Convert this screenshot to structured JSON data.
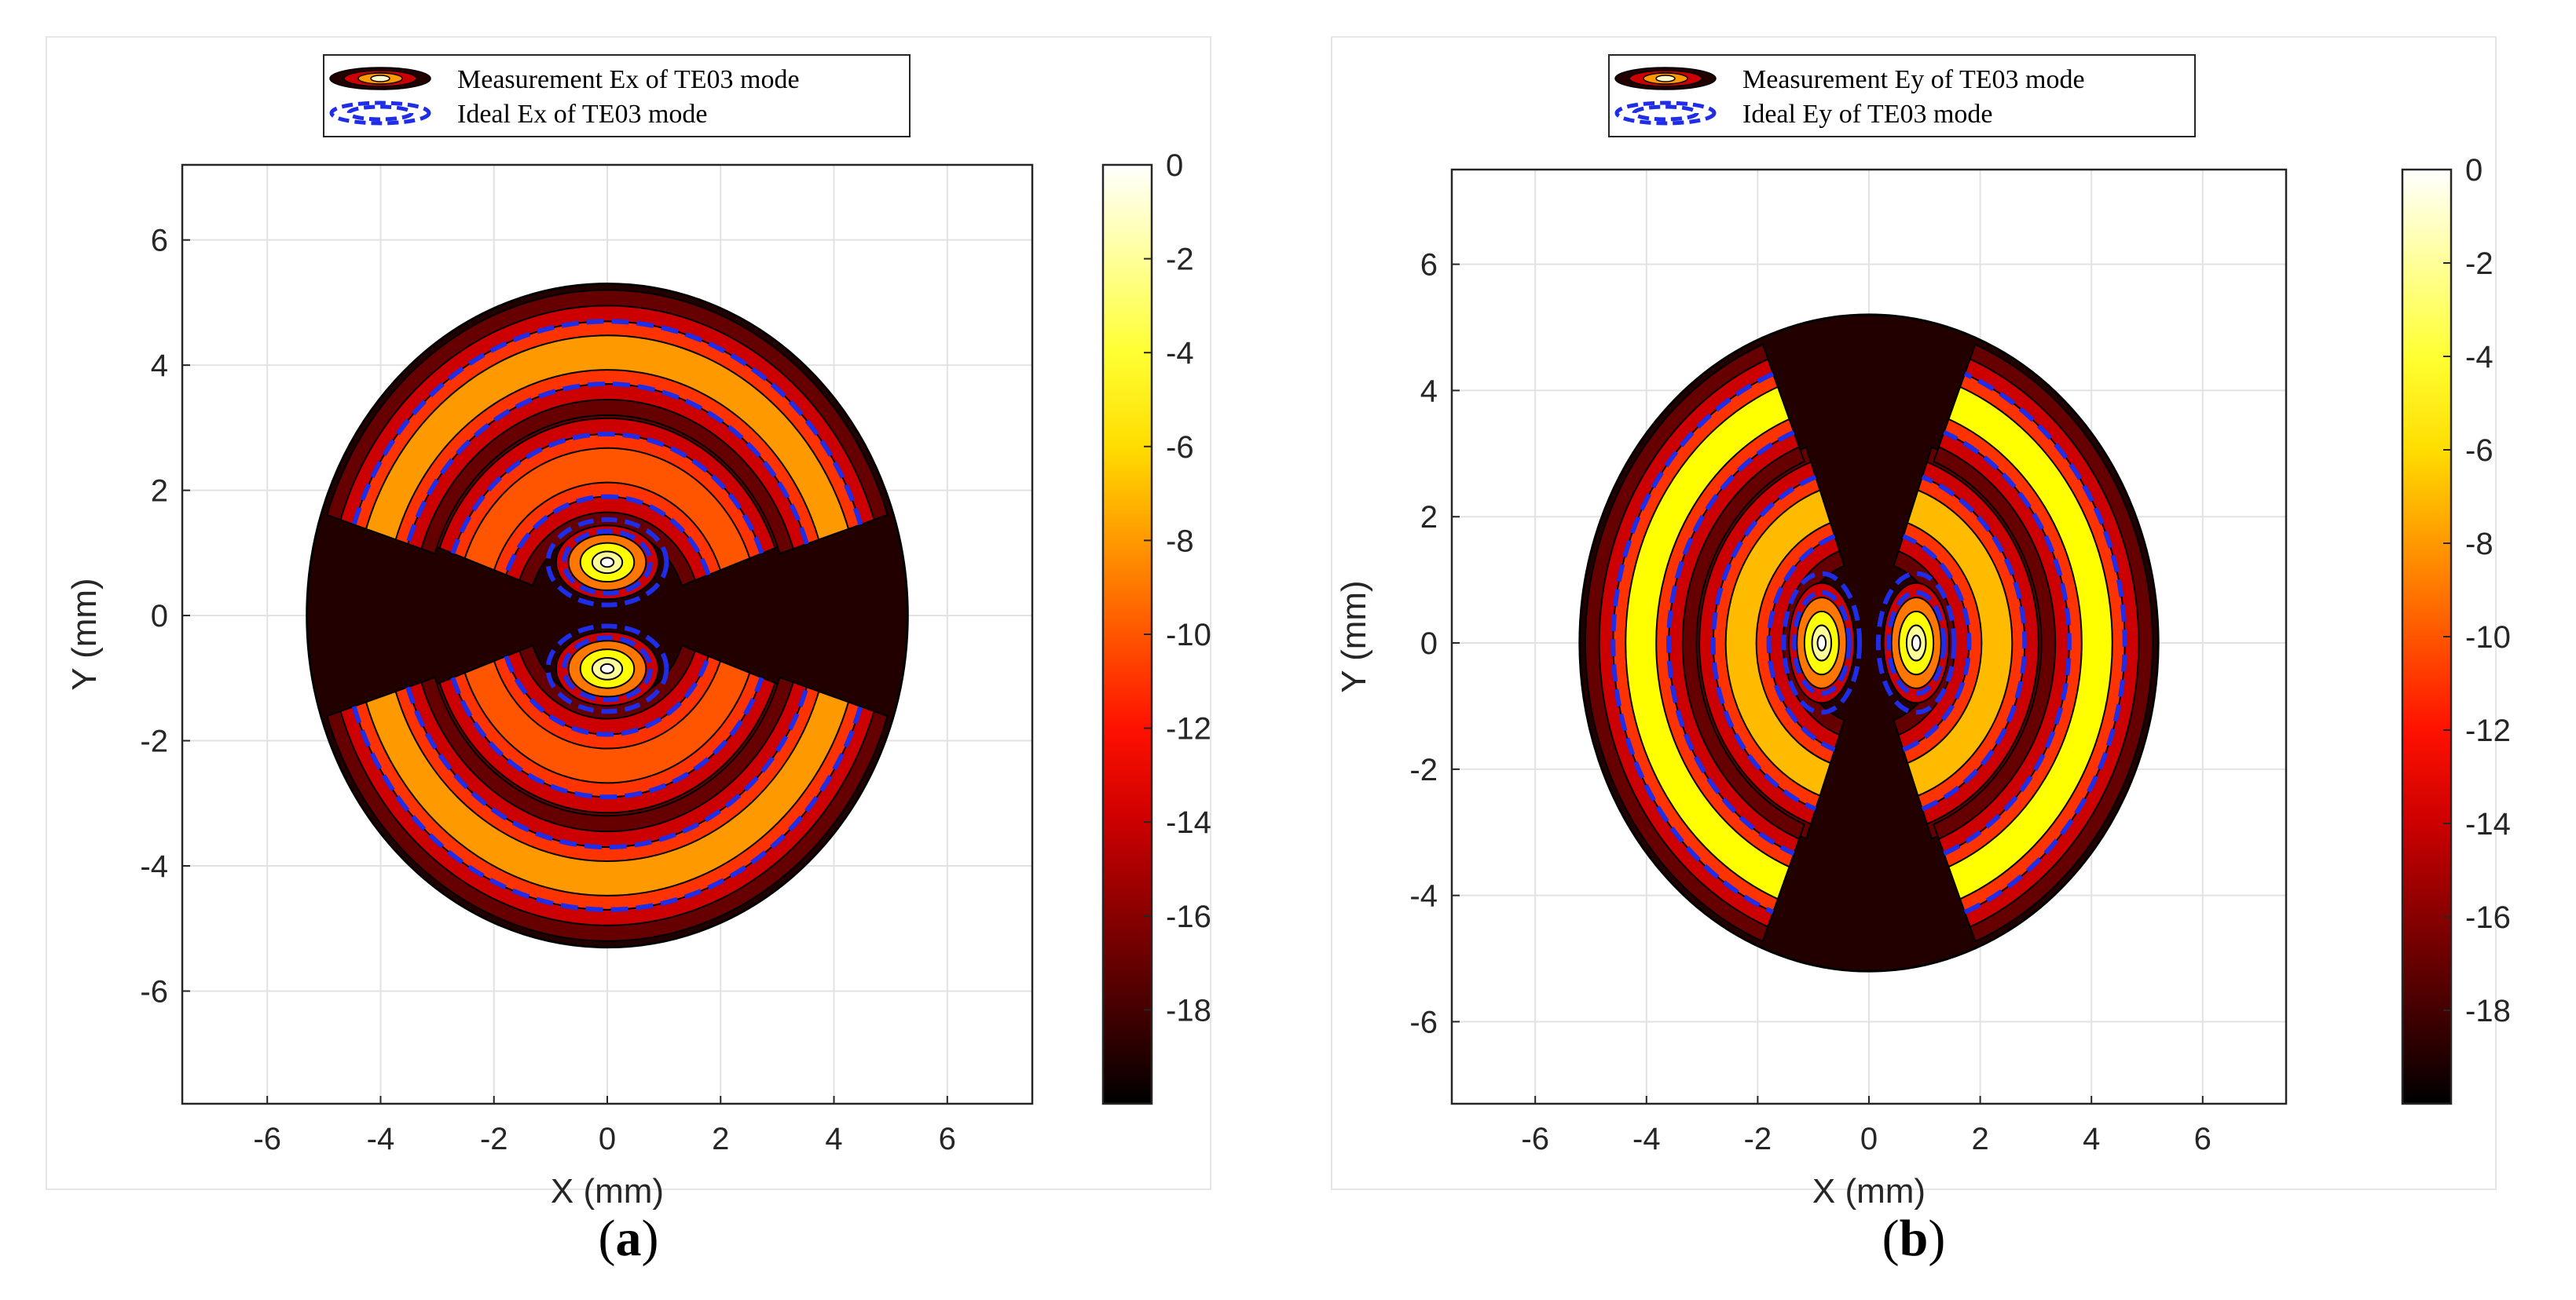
{
  "figure": {
    "captions": [
      {
        "open": "(",
        "letter": "a",
        "close": ")"
      },
      {
        "open": "(",
        "letter": "b",
        "close": ")"
      }
    ]
  },
  "chart_data": [
    {
      "type": "heatmap",
      "subtype": "contour map with overlaid dashed ideal contours",
      "xlabel": "X (mm)",
      "ylabel": "Y (mm)",
      "xlim": [
        -7.5,
        7.5
      ],
      "ylim": [
        -7.8,
        7.2
      ],
      "xticks": [
        -6,
        -4,
        -2,
        0,
        2,
        4,
        6
      ],
      "yticks": [
        -6,
        -4,
        -2,
        0,
        2,
        4,
        6
      ],
      "grid": true,
      "legend": {
        "placement": "top-center",
        "entries": [
          "Measurement Ex of  TE03 mode",
          "Ideal Ex of  TE03 mode"
        ]
      },
      "colorbar": {
        "range": [
          -20,
          0
        ],
        "ticks": [
          0,
          -2,
          -4,
          -6,
          -8,
          -10,
          -12,
          -14,
          -16,
          -18
        ],
        "colormap": "hot"
      },
      "mode_extent_radius_mm": 5.3,
      "features": [
        {
          "kind": "peak",
          "x": 0,
          "y": 0.85,
          "level_db": 0
        },
        {
          "kind": "peak",
          "x": 0,
          "y": -0.85,
          "level_db": 0
        },
        {
          "kind": "arc",
          "center_y": 0,
          "radius": 2.4,
          "angle_from": 20,
          "angle_to": 160,
          "level_db": -10
        },
        {
          "kind": "arc",
          "center_y": 0,
          "radius": 2.4,
          "angle_from": 200,
          "angle_to": 340,
          "level_db": -10
        },
        {
          "kind": "arc",
          "center_y": 0,
          "radius": 4.2,
          "angle_from": 18,
          "angle_to": 162,
          "level_db": -8
        },
        {
          "kind": "arc",
          "center_y": 0,
          "radius": 4.2,
          "angle_from": 198,
          "angle_to": 342,
          "level_db": -8
        }
      ],
      "colors": {
        "ideal_contour": "#1f2de8",
        "contour_line": "#000000"
      }
    },
    {
      "type": "heatmap",
      "subtype": "contour map with overlaid dashed ideal contours",
      "xlabel": "X (mm)",
      "ylabel": "Y (mm)",
      "xlim": [
        -7.5,
        7.5
      ],
      "ylim": [
        -7.3,
        7.5
      ],
      "xticks": [
        -6,
        -4,
        -2,
        0,
        2,
        4,
        6
      ],
      "yticks": [
        -6,
        -4,
        -2,
        0,
        2,
        4,
        6
      ],
      "grid": true,
      "legend": {
        "placement": "top-center",
        "entries": [
          "Measurement Ey of  TE03 mode",
          "Ideal Ey of  TE03 mode"
        ]
      },
      "colorbar": {
        "range": [
          -20,
          0
        ],
        "ticks": [
          0,
          -2,
          -4,
          -6,
          -8,
          -10,
          -12,
          -14,
          -16,
          -18
        ],
        "colormap": "hot"
      },
      "mode_extent_radius_mm": 5.2,
      "features": [
        {
          "kind": "peak",
          "x": -0.85,
          "y": 0,
          "level_db": 0
        },
        {
          "kind": "peak",
          "x": 0.85,
          "y": 0,
          "level_db": 0
        },
        {
          "kind": "arc",
          "center_y": 0,
          "radius": 2.3,
          "angle_from": 110,
          "angle_to": 250,
          "level_db": -7
        },
        {
          "kind": "arc",
          "center_y": 0,
          "radius": 2.3,
          "angle_from": -70,
          "angle_to": 70,
          "level_db": -7
        },
        {
          "kind": "arc",
          "center_y": 0,
          "radius": 4.1,
          "angle_from": 112,
          "angle_to": 248,
          "level_db": -5
        },
        {
          "kind": "arc",
          "center_y": 0,
          "radius": 4.1,
          "angle_from": -68,
          "angle_to": 68,
          "level_db": -5
        }
      ],
      "colors": {
        "ideal_contour": "#1f2de8",
        "contour_line": "#000000"
      }
    }
  ]
}
